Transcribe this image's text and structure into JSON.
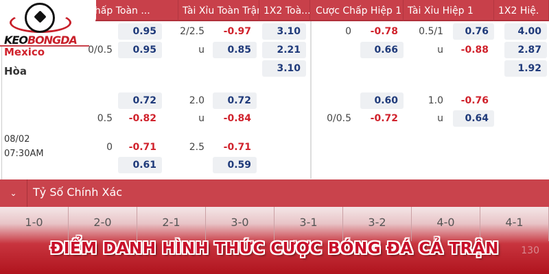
{
  "logo": {
    "text_a": "KEO",
    "text_b": "BONGDA"
  },
  "columns": [
    "c Chấp Toàn ...",
    "Tài Xỉu Toàn Trận",
    "1X2 Toà...",
    "Cược Chấp Hiệp 1",
    "Tài Xỉu Hiệp 1",
    "1X2 Hiệ."
  ],
  "match1": {
    "teams": {
      "home": "Mexico",
      "draw": "Hòa"
    },
    "rows": [
      [
        {
          "v": ""
        },
        {
          "v": "0.95",
          "b": true
        },
        {
          "v": "2/2.5"
        },
        {
          "v": "-0.97"
        },
        {
          "v": "3.10",
          "b": true
        },
        {
          "v": "0"
        },
        {
          "v": "-0.78"
        },
        {
          "v": "0.5/1"
        },
        {
          "v": "0.76",
          "b": true
        },
        {
          "v": "4.00",
          "b": true
        }
      ],
      [
        {
          "v": "0/0.5"
        },
        {
          "v": "0.95",
          "b": true
        },
        {
          "v": "u"
        },
        {
          "v": "0.85",
          "b": true
        },
        {
          "v": "2.21",
          "b": true
        },
        {
          "v": ""
        },
        {
          "v": "0.66",
          "b": true
        },
        {
          "v": "u"
        },
        {
          "v": "-0.88"
        },
        {
          "v": "2.87",
          "b": true
        }
      ],
      [
        {
          "v": ""
        },
        {
          "v": ""
        },
        {
          "v": ""
        },
        {
          "v": ""
        },
        {
          "v": "3.10",
          "b": true
        },
        {
          "v": ""
        },
        {
          "v": ""
        },
        {
          "v": ""
        },
        {
          "v": ""
        },
        {
          "v": "1.92",
          "b": true
        }
      ]
    ]
  },
  "match2": {
    "date": "08/02",
    "time": "07:30AM",
    "rows": [
      [
        {
          "v": ""
        },
        {
          "v": "0.72",
          "b": true
        },
        {
          "v": "2.0"
        },
        {
          "v": "0.72",
          "b": true
        },
        {
          "v": ""
        },
        {
          "v": ""
        },
        {
          "v": "0.60",
          "b": true
        },
        {
          "v": "1.0"
        },
        {
          "v": "-0.76"
        },
        {
          "v": ""
        }
      ],
      [
        {
          "v": "0.5"
        },
        {
          "v": "-0.82"
        },
        {
          "v": "u"
        },
        {
          "v": "-0.84"
        },
        {
          "v": ""
        },
        {
          "v": "0/0.5"
        },
        {
          "v": "-0.72"
        },
        {
          "v": "u"
        },
        {
          "v": "0.64",
          "b": true
        },
        {
          "v": ""
        }
      ],
      [
        {
          "v": "0"
        },
        {
          "v": "-0.71"
        },
        {
          "v": "2.5"
        },
        {
          "v": "-0.71"
        },
        {
          "v": ""
        },
        {
          "v": ""
        },
        {
          "v": ""
        },
        {
          "v": ""
        },
        {
          "v": ""
        },
        {
          "v": ""
        }
      ],
      [
        {
          "v": ""
        },
        {
          "v": "0.61",
          "b": true
        },
        {
          "v": ""
        },
        {
          "v": "0.59",
          "b": true
        },
        {
          "v": ""
        },
        {
          "v": ""
        },
        {
          "v": ""
        },
        {
          "v": ""
        },
        {
          "v": ""
        },
        {
          "v": ""
        }
      ]
    ]
  },
  "exact_score": {
    "label": "Tỷ Số Chính Xác",
    "scores": [
      "1-0",
      "2-0",
      "2-1",
      "3-0",
      "3-1",
      "3-2",
      "4-0",
      "4-1"
    ],
    "partial_value": "130"
  },
  "banner": "ĐIỂM DANH HÌNH THỨC CƯỢC BÓNG ĐÁ CẢ TRẬN",
  "colors": {
    "header": "#c8404a",
    "odds": "#1f3a7a",
    "negative": "#d0222c"
  }
}
